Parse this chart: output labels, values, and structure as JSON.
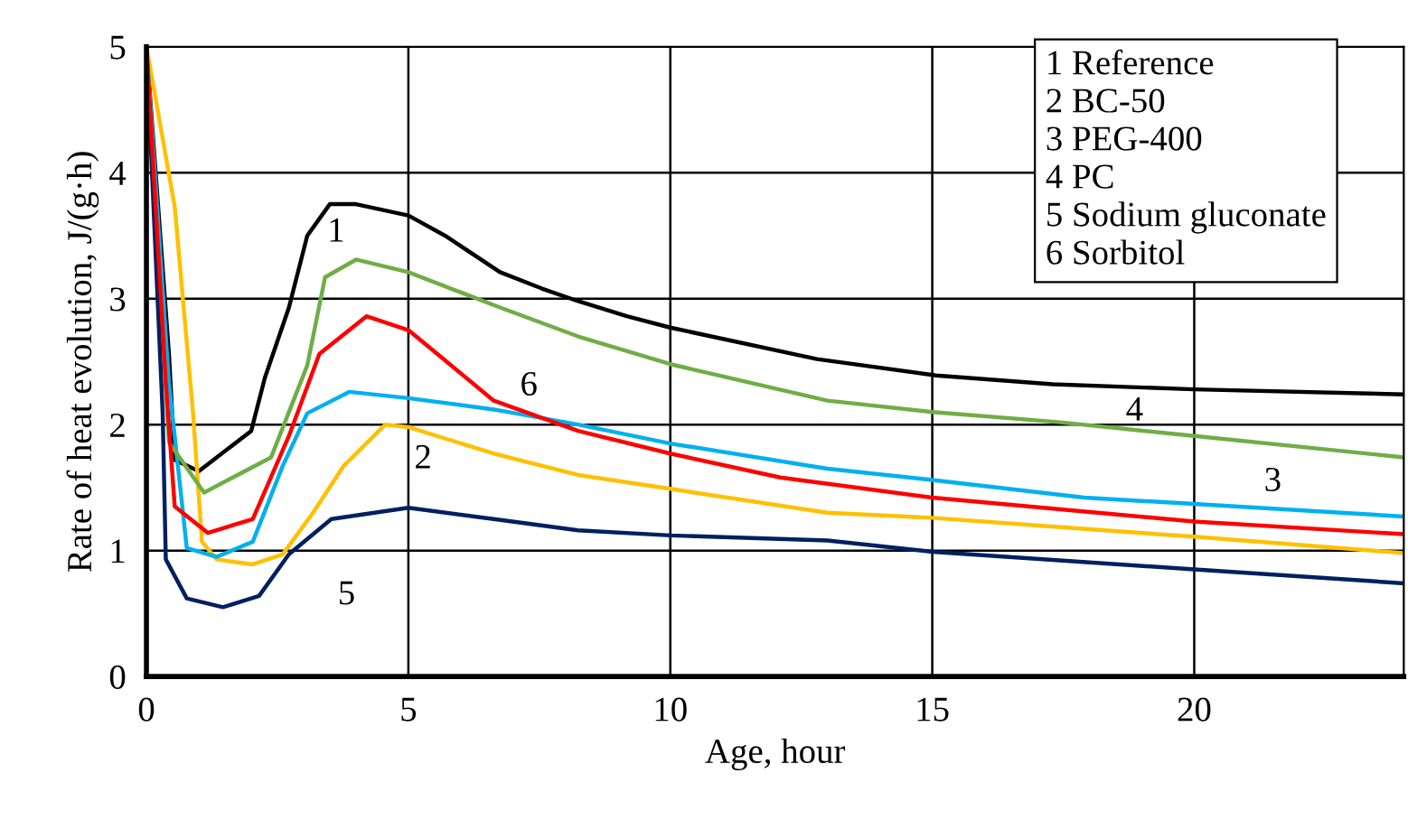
{
  "chart_data": {
    "type": "line",
    "xlabel": "Age, hour",
    "ylabel": "Rate of heat evolution, J/(g·h)",
    "xlim": [
      0,
      24
    ],
    "ylim": [
      0,
      5
    ],
    "xticks": [
      0,
      5,
      10,
      15,
      20
    ],
    "yticks": [
      0,
      1,
      2,
      3,
      4,
      5
    ],
    "grid": true,
    "legend": false,
    "marker": "none",
    "line_style": "solid",
    "series": [
      {
        "name": "1",
        "color": "#000000",
        "x": [
          0,
          0.43,
          0.54,
          1.0,
          2.0,
          2.26,
          2.72,
          3.07,
          3.5,
          4.0,
          5,
          5.7,
          6.75,
          7.55,
          8.24,
          9.17,
          10,
          12.8,
          15.07,
          17.3,
          20,
          24
        ],
        "values": [
          5,
          2.56,
          1.72,
          1.63,
          1.95,
          2.37,
          2.93,
          3.5,
          3.75,
          3.75,
          3.66,
          3.5,
          3.21,
          3.08,
          2.98,
          2.86,
          2.77,
          2.52,
          2.39,
          2.32,
          2.28,
          2.24
        ]
      },
      {
        "name": "2",
        "color": "#ffc000",
        "x": [
          0,
          0.54,
          0.89,
          1.06,
          1.34,
          2.03,
          2.6,
          3.18,
          3.76,
          4.56,
          5,
          6.63,
          8.24,
          10,
          13,
          15,
          18.3,
          20,
          24
        ],
        "values": [
          5,
          3.73,
          2.09,
          1.07,
          0.93,
          0.89,
          0.97,
          1.3,
          1.67,
          2.0,
          1.98,
          1.77,
          1.6,
          1.49,
          1.3,
          1.26,
          1.16,
          1.11,
          0.98
        ]
      },
      {
        "name": "3",
        "color": "#00b0f0",
        "x": [
          0,
          0.43,
          0.77,
          1.34,
          2.03,
          2.6,
          3.07,
          3.87,
          5,
          6.63,
          8.24,
          10,
          13,
          15,
          17.9,
          20,
          24
        ],
        "values": [
          5,
          2.33,
          1.02,
          0.95,
          1.07,
          1.67,
          2.09,
          2.26,
          2.21,
          2.12,
          2.0,
          1.85,
          1.65,
          1.56,
          1.42,
          1.37,
          1.27
        ]
      },
      {
        "name": "4",
        "color": "#70ad47",
        "x": [
          0,
          0.43,
          1.1,
          2.38,
          3.07,
          3.41,
          4.0,
          5,
          6.75,
          8.24,
          10,
          13,
          15,
          17.4,
          20,
          24
        ],
        "values": [
          5,
          1.86,
          1.46,
          1.74,
          2.47,
          3.17,
          3.31,
          3.21,
          2.93,
          2.7,
          2.48,
          2.19,
          2.1,
          2.02,
          1.91,
          1.74
        ]
      },
      {
        "name": "5",
        "color": "#002060",
        "x": [
          0,
          0.31,
          0.37,
          0.77,
          1.46,
          2.15,
          2.72,
          3.53,
          5,
          6.63,
          8.24,
          10,
          13,
          15,
          20,
          24
        ],
        "values": [
          5,
          2.09,
          0.93,
          0.62,
          0.55,
          0.64,
          0.97,
          1.25,
          1.34,
          1.25,
          1.16,
          1.12,
          1.08,
          0.99,
          0.85,
          0.74
        ]
      },
      {
        "name": "6",
        "color": "#ff0000",
        "x": [
          0,
          0.37,
          0.54,
          1.17,
          2.03,
          2.72,
          3.3,
          4.2,
          5,
          5.7,
          6.63,
          8.24,
          10,
          12.1,
          15,
          20,
          24
        ],
        "values": [
          5,
          2.33,
          1.35,
          1.14,
          1.25,
          1.91,
          2.56,
          2.86,
          2.75,
          2.51,
          2.19,
          1.95,
          1.77,
          1.58,
          1.42,
          1.23,
          1.13
        ]
      }
    ],
    "annotations": [
      "1 Reference",
      "2 BC-50",
      "3 PEG-400",
      "4 PC",
      "5 Sodium gluconate",
      "6 Sorbitol"
    ]
  }
}
